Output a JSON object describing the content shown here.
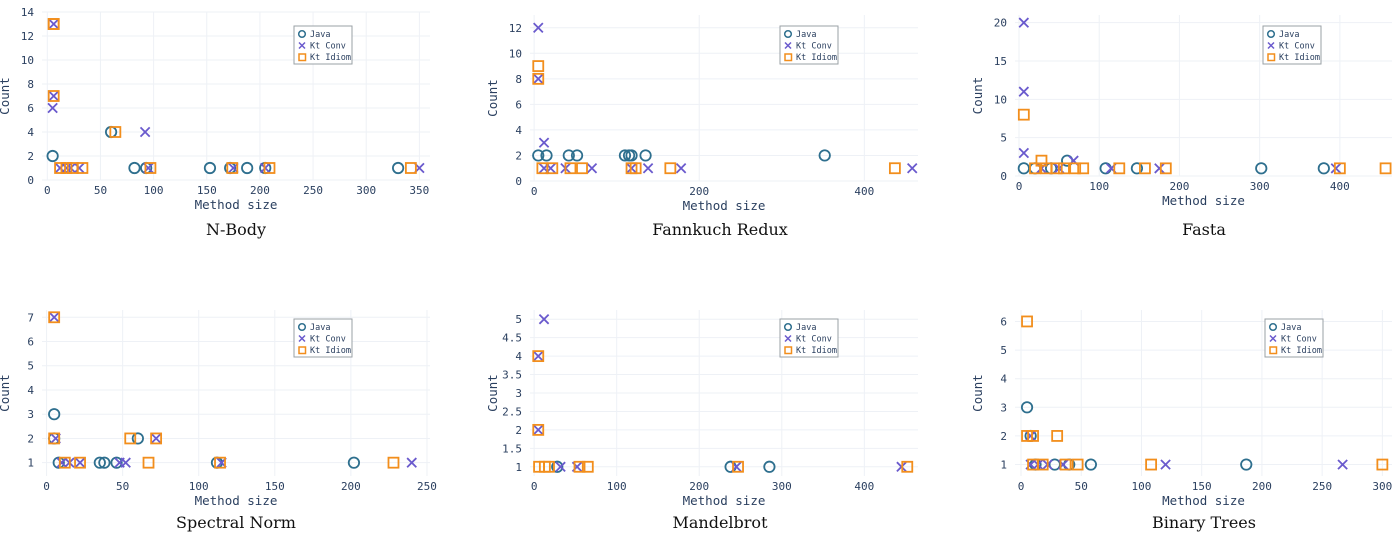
{
  "colors": {
    "java": "#2e6f8e",
    "kt_conv": "#6a5acd",
    "kt_idiom": "#f28e1c"
  },
  "chart_data": [
    {
      "type": "scatter",
      "title": "N-Body",
      "xlabel": "Method size",
      "ylabel": "Count",
      "xlim": [
        -5,
        360
      ],
      "ylim": [
        0,
        14
      ],
      "xticks": [
        0,
        50,
        100,
        150,
        200,
        250,
        300,
        350
      ],
      "yticks": [
        0,
        2,
        4,
        6,
        8,
        10,
        12,
        14
      ],
      "legend": [
        "Java",
        "Kt Conv",
        "Kt Idiom"
      ],
      "legend_position": "top-right",
      "series": [
        {
          "name": "Java",
          "x": [
            5,
            60,
            82,
            93,
            153,
            172,
            188,
            205,
            330
          ],
          "y": [
            2,
            4,
            1,
            1,
            1,
            1,
            1,
            1,
            1
          ]
        },
        {
          "name": "Kt Conv",
          "x": [
            5,
            6,
            6,
            12,
            18,
            22,
            30,
            92,
            95,
            175,
            205,
            350
          ],
          "y": [
            6,
            7,
            13,
            1,
            1,
            1,
            1,
            4,
            1,
            1,
            1,
            1
          ]
        },
        {
          "name": "Kt Idiom",
          "x": [
            6,
            6,
            6,
            12,
            18,
            24,
            33,
            64,
            97,
            174,
            209,
            342
          ],
          "y": [
            7,
            13,
            13,
            1,
            1,
            1,
            1,
            4,
            1,
            1,
            1,
            1
          ]
        }
      ]
    },
    {
      "type": "scatter",
      "title": "Fannkuch Redux",
      "xlabel": "Method size",
      "ylabel": "Count",
      "xlim": [
        -5,
        465
      ],
      "ylim": [
        0,
        13
      ],
      "xticks": [
        0,
        200,
        400
      ],
      "yticks": [
        0,
        2,
        4,
        6,
        8,
        10,
        12
      ],
      "legend": [
        "Java",
        "Kt Conv",
        "Kt Idiom"
      ],
      "legend_position": "top-right",
      "series": [
        {
          "name": "Java",
          "x": [
            5,
            15,
            42,
            52,
            110,
            115,
            118,
            135,
            352
          ],
          "y": [
            2,
            2,
            2,
            2,
            2,
            2,
            2,
            2,
            2
          ]
        },
        {
          "name": "Kt Conv",
          "x": [
            5,
            5,
            12,
            12,
            20,
            38,
            70,
            118,
            138,
            178,
            458
          ],
          "y": [
            8,
            12,
            3,
            1,
            1,
            1,
            1,
            1,
            1,
            1,
            1
          ]
        },
        {
          "name": "Kt Idiom",
          "x": [
            5,
            5,
            10,
            22,
            44,
            58,
            118,
            123,
            165,
            437
          ],
          "y": [
            8,
            9,
            1,
            1,
            1,
            1,
            1,
            1,
            1,
            1
          ]
        }
      ]
    },
    {
      "type": "scatter",
      "title": "Fasta",
      "xlabel": "Method size",
      "ylabel": "Count",
      "xlim": [
        -5,
        465
      ],
      "ylim": [
        0,
        21
      ],
      "xticks": [
        0,
        100,
        200,
        300,
        400
      ],
      "yticks": [
        0,
        5,
        10,
        15,
        20
      ],
      "legend": [
        "Java",
        "Kt Conv",
        "Kt Idiom"
      ],
      "legend_position": "top-right",
      "series": [
        {
          "name": "Java",
          "x": [
            6,
            20,
            40,
            60,
            108,
            147,
            302,
            380
          ],
          "y": [
            1,
            1,
            1,
            2,
            1,
            1,
            1,
            1
          ]
        },
        {
          "name": "Kt Conv",
          "x": [
            6,
            6,
            6,
            28,
            50,
            68,
            115,
            175,
            395
          ],
          "y": [
            11,
            20,
            3,
            1,
            1,
            2,
            1,
            1,
            1
          ]
        },
        {
          "name": "Kt Idiom",
          "x": [
            6,
            28,
            20,
            34,
            47,
            56,
            70,
            80,
            125,
            157,
            183,
            400,
            457
          ],
          "y": [
            8,
            2,
            1,
            1,
            1,
            1,
            1,
            1,
            1,
            1,
            1,
            1,
            1
          ]
        }
      ]
    },
    {
      "type": "scatter",
      "title": "Spectral Norm",
      "xlabel": "Method size",
      "ylabel": "Count",
      "xlim": [
        -3,
        252
      ],
      "ylim": [
        0.45,
        7.3
      ],
      "xticks": [
        0,
        50,
        100,
        150,
        200,
        250
      ],
      "yticks": [
        1,
        2,
        3,
        4,
        5,
        6,
        7
      ],
      "legend": [
        "Java",
        "Kt Conv",
        "Kt Idiom"
      ],
      "legend_position": "top-right",
      "series": [
        {
          "name": "Java",
          "x": [
            5,
            5,
            8,
            35,
            38,
            46,
            60,
            112,
            202
          ],
          "y": [
            3,
            2,
            1,
            1,
            1,
            1,
            2,
            1,
            1
          ]
        },
        {
          "name": "Kt Conv",
          "x": [
            5,
            6,
            10,
            15,
            22,
            48,
            52,
            72,
            115,
            240
          ],
          "y": [
            7,
            2,
            1,
            1,
            1,
            1,
            1,
            2,
            1,
            1
          ]
        },
        {
          "name": "Kt Idiom",
          "x": [
            5,
            5,
            12,
            22,
            55,
            67,
            72,
            114,
            228
          ],
          "y": [
            7,
            2,
            1,
            1,
            2,
            1,
            2,
            1,
            1
          ]
        }
      ]
    },
    {
      "type": "scatter",
      "title": "Mandelbrot",
      "xlabel": "Method size",
      "ylabel": "Count",
      "xlim": [
        -5,
        465
      ],
      "ylim": [
        0.75,
        5.25
      ],
      "xticks": [
        0,
        100,
        200,
        300,
        400
      ],
      "yticks": [
        1,
        1.5,
        2,
        2.5,
        3,
        3.5,
        4,
        4.5,
        5
      ],
      "legend": [
        "Java",
        "Kt Conv",
        "Kt Idiom"
      ],
      "legend_position": "top-right",
      "series": [
        {
          "name": "Java",
          "x": [
            28,
            238,
            285
          ],
          "y": [
            1,
            1,
            1
          ]
        },
        {
          "name": "Kt Conv",
          "x": [
            5,
            5,
            12,
            32,
            52,
            245,
            445
          ],
          "y": [
            4,
            2,
            5,
            1,
            1,
            1,
            1
          ]
        },
        {
          "name": "Kt Idiom",
          "x": [
            5,
            5,
            6,
            13,
            18,
            55,
            65,
            247,
            452
          ],
          "y": [
            4,
            2,
            1,
            1,
            1,
            1,
            1,
            1,
            1
          ]
        }
      ]
    },
    {
      "type": "scatter",
      "title": "Binary Trees",
      "xlabel": "Method size",
      "ylabel": "Count",
      "xlim": [
        -5,
        308
      ],
      "ylim": [
        0.6,
        6.4
      ],
      "xticks": [
        0,
        50,
        100,
        150,
        200,
        250,
        300
      ],
      "yticks": [
        1,
        2,
        3,
        4,
        5,
        6
      ],
      "legend": [
        "Java",
        "Kt Conv",
        "Kt Idiom"
      ],
      "legend_position": "top-right",
      "series": [
        {
          "name": "Java",
          "x": [
            5,
            8,
            12,
            28,
            40,
            58,
            187
          ],
          "y": [
            3,
            2,
            1,
            1,
            1,
            1,
            1
          ]
        },
        {
          "name": "Kt Conv",
          "x": [
            8,
            8,
            14,
            22,
            35,
            120,
            267
          ],
          "y": [
            2,
            1,
            1,
            1,
            1,
            1,
            1
          ]
        },
        {
          "name": "Kt Idiom",
          "x": [
            5,
            5,
            10,
            10,
            18,
            30,
            37,
            47,
            108,
            300
          ],
          "y": [
            6,
            2,
            2,
            1,
            1,
            2,
            1,
            1,
            1,
            1
          ]
        }
      ]
    }
  ]
}
